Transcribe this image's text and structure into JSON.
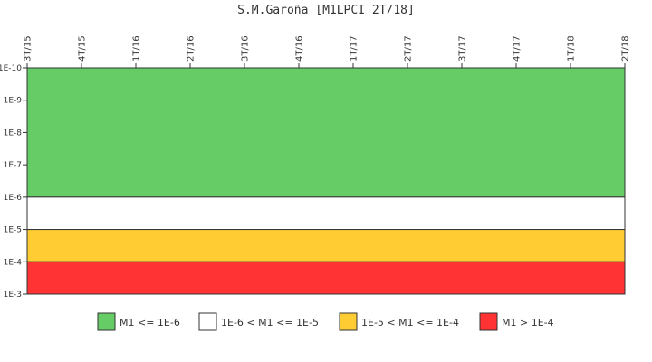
{
  "chart_data": {
    "type": "area",
    "title": "S.M.Garoña [M1LPCI 2T/18]",
    "x_tick_labels": [
      "3T/15",
      "4T/15",
      "1T/16",
      "2T/16",
      "3T/16",
      "4T/16",
      "1T/17",
      "2T/17",
      "3T/17",
      "4T/17",
      "1T/18",
      "2T/18"
    ],
    "y_scale": "log",
    "ylim": [
      1e-10,
      0.001
    ],
    "y_axis_inverted": true,
    "y_tick_labels": [
      "1E-10",
      "1E-9",
      "1E-8",
      "1E-7",
      "1E-6",
      "1E-5",
      "1E-4",
      "1E-3"
    ],
    "y_tick_values": [
      1e-10,
      1e-09,
      1e-08,
      1e-07,
      1e-06,
      1e-05,
      0.0001,
      0.001
    ],
    "bands": [
      {
        "name": "M1 <= 1E-6",
        "from": 1e-10,
        "to": 1e-06,
        "color": "#66cc66"
      },
      {
        "name": "1E-6 < M1 <= 1E-5",
        "from": 1e-06,
        "to": 1e-05,
        "color": "#ffffff"
      },
      {
        "name": "1E-5 < M1 <= 1E-4",
        "from": 1e-05,
        "to": 0.0001,
        "color": "#ffcc33"
      },
      {
        "name": "M1 > 1E-4",
        "from": 0.0001,
        "to": 0.001,
        "color": "#ff3333"
      }
    ],
    "legend_position": "bottom",
    "grid": false
  }
}
